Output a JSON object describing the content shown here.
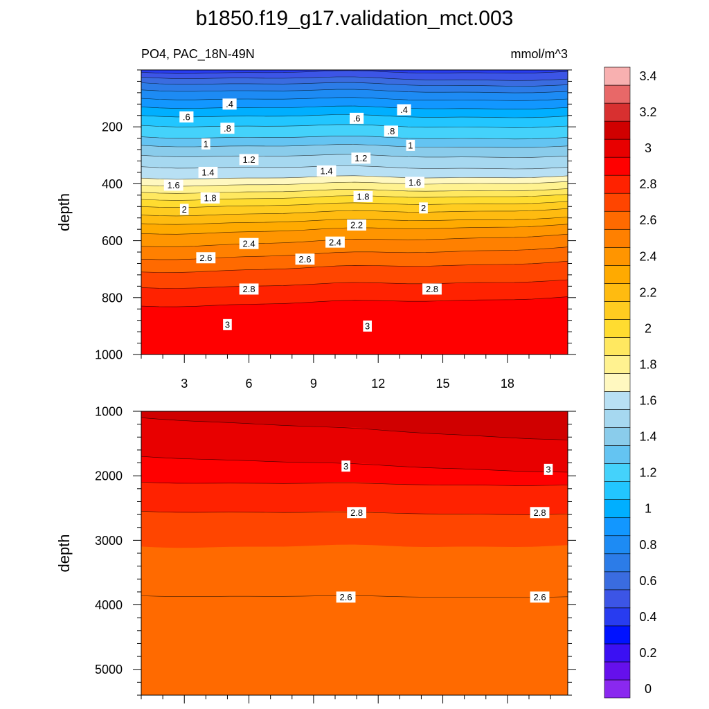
{
  "chart_data": {
    "type": "contour",
    "title": "b1850.f19_g17.validation_mct.003",
    "subtitle_left": "PO4, PAC_18N-49N",
    "units": "mmol/m^3",
    "panels": [
      {
        "name": "upper",
        "ylabel": "depth",
        "xlim": [
          1,
          20.8
        ],
        "ylim": [
          1000,
          0
        ],
        "yticks": [
          200,
          400,
          600,
          800,
          1000
        ],
        "xticks": [
          3,
          6,
          9,
          12,
          15,
          18
        ],
        "grid": false,
        "bands": [
          {
            "value": 0.4,
            "top": [
              0,
              0
            ],
            "bottom": [
              8,
              8
            ]
          },
          {
            "value": 0.5,
            "top": [
              8,
              8
            ],
            "bottom": [
              25,
              35
            ]
          },
          {
            "value": 0.6,
            "top": [
              25,
              35
            ],
            "bottom": [
              45,
              55
            ]
          },
          {
            "value": 0.7,
            "top": [
              45,
              55
            ],
            "bottom": [
              70,
              78
            ]
          },
          {
            "value": 0.8,
            "top": [
              70,
              78
            ],
            "bottom": [
              100,
              105
            ]
          },
          {
            "value": 0.9,
            "top": [
              100,
              105
            ],
            "bottom": [
              130,
              135
            ]
          },
          {
            "value": 1.0,
            "top": [
              130,
              135
            ],
            "bottom": [
              160,
              165
            ]
          },
          {
            "value": 1.1,
            "top": [
              160,
              165
            ],
            "bottom": [
              195,
              200
            ]
          },
          {
            "value": 1.2,
            "top": [
              195,
              200
            ],
            "bottom": [
              235,
              240
            ]
          },
          {
            "value": 1.3,
            "top": [
              235,
              240
            ],
            "bottom": [
              265,
              270
            ]
          },
          {
            "value": 1.4,
            "top": [
              265,
              270
            ],
            "bottom": [
              300,
              305
            ]
          },
          {
            "value": 1.5,
            "top": [
              300,
              305
            ],
            "bottom": [
              340,
              345
            ]
          },
          {
            "value": 1.6,
            "top": [
              340,
              345
            ],
            "bottom": [
              380,
              375
            ]
          },
          {
            "value": 1.7,
            "top": [
              380,
              375
            ],
            "bottom": [
              405,
              395
            ]
          },
          {
            "value": 1.8,
            "top": [
              405,
              395
            ],
            "bottom": [
              430,
              420
            ]
          },
          {
            "value": 1.9,
            "top": [
              430,
              420
            ],
            "bottom": [
              455,
              440
            ]
          },
          {
            "value": 2.0,
            "top": [
              455,
              440
            ],
            "bottom": [
              480,
              465
            ]
          },
          {
            "value": 2.1,
            "top": [
              480,
              465
            ],
            "bottom": [
              510,
              490
            ]
          },
          {
            "value": 2.2,
            "top": [
              510,
              490
            ],
            "bottom": [
              540,
              520
            ]
          },
          {
            "value": 2.3,
            "top": [
              540,
              520
            ],
            "bottom": [
              575,
              545
            ]
          },
          {
            "value": 2.4,
            "top": [
              575,
              545
            ],
            "bottom": [
              620,
              580
            ]
          },
          {
            "value": 2.5,
            "top": [
              620,
              580
            ],
            "bottom": [
              665,
              625
            ]
          },
          {
            "value": 2.6,
            "top": [
              665,
              625
            ],
            "bottom": [
              710,
              675
            ]
          },
          {
            "value": 2.7,
            "top": [
              710,
              675
            ],
            "bottom": [
              765,
              740
            ]
          },
          {
            "value": 2.8,
            "top": [
              765,
              740
            ],
            "bottom": [
              830,
              800
            ]
          },
          {
            "value": 2.9,
            "top": [
              830,
              800
            ],
            "bottom": [
              1000,
              1000
            ]
          }
        ],
        "contour_labels": [
          {
            "text": ".4",
            "x": 5.1,
            "depth": 120
          },
          {
            "text": ".4",
            "x": 13.2,
            "depth": 140
          },
          {
            "text": ".6",
            "x": 3.1,
            "depth": 165
          },
          {
            "text": ".6",
            "x": 11.0,
            "depth": 170
          },
          {
            "text": ".8",
            "x": 5.0,
            "depth": 205
          },
          {
            "text": ".8",
            "x": 12.6,
            "depth": 215
          },
          {
            "text": "1",
            "x": 4.0,
            "depth": 260
          },
          {
            "text": "1",
            "x": 13.5,
            "depth": 265
          },
          {
            "text": "1.2",
            "x": 6.0,
            "depth": 315
          },
          {
            "text": "1.2",
            "x": 11.2,
            "depth": 310
          },
          {
            "text": "1.4",
            "x": 4.1,
            "depth": 360
          },
          {
            "text": "1.4",
            "x": 9.6,
            "depth": 355
          },
          {
            "text": "1.6",
            "x": 2.5,
            "depth": 405
          },
          {
            "text": "1.6",
            "x": 13.7,
            "depth": 395
          },
          {
            "text": "1.8",
            "x": 4.2,
            "depth": 450
          },
          {
            "text": "1.8",
            "x": 11.3,
            "depth": 445
          },
          {
            "text": "2",
            "x": 3.0,
            "depth": 490
          },
          {
            "text": "2",
            "x": 14.1,
            "depth": 485
          },
          {
            "text": "2.2",
            "x": 11.0,
            "depth": 545
          },
          {
            "text": "2.4",
            "x": 6.0,
            "depth": 610
          },
          {
            "text": "2.4",
            "x": 10.0,
            "depth": 605
          },
          {
            "text": "2.6",
            "x": 4.0,
            "depth": 660
          },
          {
            "text": "2.6",
            "x": 8.6,
            "depth": 665
          },
          {
            "text": "2.8",
            "x": 6.0,
            "depth": 770
          },
          {
            "text": "2.8",
            "x": 14.5,
            "depth": 770
          },
          {
            "text": "3",
            "x": 5.0,
            "depth": 895
          },
          {
            "text": "3",
            "x": 11.5,
            "depth": 900
          }
        ]
      },
      {
        "name": "lower",
        "ylabel": "depth",
        "xlim": [
          1,
          20.8
        ],
        "ylim": [
          5400,
          1000
        ],
        "yticks": [
          1000,
          2000,
          3000,
          4000,
          5000
        ],
        "grid": false,
        "bands": [
          {
            "value": 3.1,
            "top": [
              1000,
              1000
            ],
            "bottom": [
              1100,
              1450
            ]
          },
          {
            "value": 3.0,
            "top": [
              1100,
              1450
            ],
            "bottom": [
              1700,
              1950
            ]
          },
          {
            "value": 2.9,
            "top": [
              1700,
              1950
            ],
            "bottom": [
              2100,
              2150
            ]
          },
          {
            "value": 2.8,
            "top": [
              2100,
              2150
            ],
            "bottom": [
              2550,
              2600
            ]
          },
          {
            "value": 2.7,
            "top": [
              2550,
              2600
            ],
            "bottom": [
              3100,
              3090
            ]
          },
          {
            "value": 2.6,
            "top": [
              3100,
              3090
            ],
            "bottom": [
              5400,
              5400
            ]
          }
        ],
        "contour_lines": [
          {
            "depth": [
              1100,
              1450
            ]
          },
          {
            "depth": [
              1700,
              1950
            ]
          },
          {
            "depth": [
              2100,
              2150
            ]
          },
          {
            "depth": [
              2550,
              2600
            ]
          },
          {
            "depth": [
              3860,
              3880
            ]
          }
        ],
        "contour_labels": [
          {
            "text": "3",
            "x": 10.5,
            "depth": 1850
          },
          {
            "text": "3",
            "x": 19.9,
            "depth": 1900
          },
          {
            "text": "2.8",
            "x": 11.0,
            "depth": 2570
          },
          {
            "text": "2.8",
            "x": 19.5,
            "depth": 2570
          },
          {
            "text": "2.6",
            "x": 10.5,
            "depth": 3880
          },
          {
            "text": "2.6",
            "x": 19.5,
            "depth": 3880
          }
        ]
      }
    ],
    "colorbar": {
      "levels": [
        -0.1,
        0.1,
        0.2,
        0.3,
        0.4,
        0.5,
        0.6,
        0.7,
        0.8,
        0.9,
        1.0,
        1.1,
        1.2,
        1.3,
        1.4,
        1.5,
        1.6,
        1.7,
        1.8,
        1.9,
        2.0,
        2.1,
        2.2,
        2.3,
        2.4,
        2.5,
        2.6,
        2.7,
        2.8,
        2.9,
        3.0,
        3.1,
        3.2,
        3.3,
        3.4,
        3.5,
        3.6
      ],
      "colors": [
        "#8a28ef",
        "#6510ec",
        "#3b10f3",
        "#0012ff",
        "#283cf0",
        "#3c55e6",
        "#3a6ce0",
        "#2c7ce8",
        "#1d8bf4",
        "#1297ff",
        "#00afff",
        "#22c6ff",
        "#44d2fb",
        "#64c4f2",
        "#8acceb",
        "#a6d8f0",
        "#b8e0f4",
        "#fff8c0",
        "#fff290",
        "#ffe860",
        "#ffdc30",
        "#ffcc20",
        "#ffbb10",
        "#ffaa00",
        "#ff9500",
        "#ff8000",
        "#ff6a00",
        "#ff4500",
        "#ff2200",
        "#ff0000",
        "#e80000",
        "#d00000",
        "#d83030",
        "#e86868",
        "#f8b0b0"
      ],
      "tick_labels": [
        "0",
        "0.2",
        "0.4",
        "0.6",
        "0.8",
        "1",
        "1.2",
        "1.4",
        "1.6",
        "1.8",
        "2",
        "2.2",
        "2.4",
        "2.6",
        "2.8",
        "3",
        "3.2",
        "3.4"
      ],
      "tick_values": [
        0,
        0.2,
        0.4,
        0.6,
        0.8,
        1.0,
        1.2,
        1.4,
        1.6,
        1.8,
        2.0,
        2.2,
        2.4,
        2.6,
        2.8,
        3.0,
        3.2,
        3.4
      ]
    }
  }
}
